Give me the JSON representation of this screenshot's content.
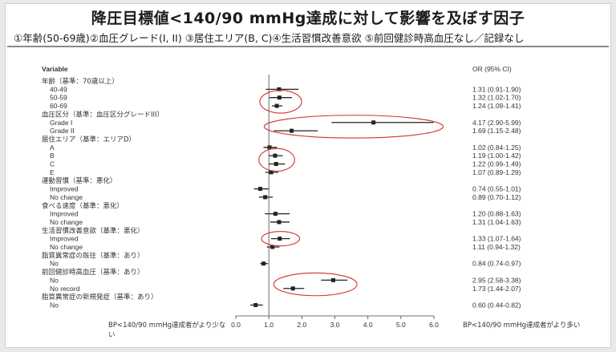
{
  "title": "降圧目標値<140/90 mmHg達成に対して影響を及ぼす因子",
  "subtitle": "①年齢(50-69歳)②血圧グレード(I, II) ③居住エリア(B, C)④生活習慣改善意欲 ⑤前回健診時高血圧なし／記録なし",
  "chart_data": {
    "type": "forest",
    "column_left": "Variable",
    "column_right": "OR (95% CI)",
    "xlim": [
      0,
      6
    ],
    "xticks": [
      "0.0",
      "1.0",
      "2.0",
      "3.0",
      "4.0",
      "5.0",
      "6.0"
    ],
    "reference_line": 1.0,
    "footer_left": "BP<140/90 mmHg達成者がより少ない",
    "footer_right": "BP<140/90 mmHg達成者がより多い",
    "rows": [
      {
        "label": "年齢（基準：70歳以上）",
        "header": true
      },
      {
        "label": "40-49",
        "or": 1.31,
        "lo": 0.91,
        "hi": 1.9,
        "ci_text": "1.31 (0.91-1.90)"
      },
      {
        "label": "50-59",
        "or": 1.32,
        "lo": 1.02,
        "hi": 1.7,
        "ci_text": "1.32 (1.02-1.70)",
        "highlight": true
      },
      {
        "label": "60-69",
        "or": 1.24,
        "lo": 1.09,
        "hi": 1.41,
        "ci_text": "1.24 (1.09-1.41)",
        "highlight": true
      },
      {
        "label": "血圧区分（基準：血圧区分グレードIII）",
        "header": true
      },
      {
        "label": "Grade I",
        "or": 4.17,
        "lo": 2.9,
        "hi": 5.99,
        "ci_text": "4.17 (2.90-5.99)",
        "highlight": true
      },
      {
        "label": "Grade II",
        "or": 1.69,
        "lo": 1.15,
        "hi": 2.48,
        "ci_text": "1.69 (1.15-2.48)",
        "highlight": true
      },
      {
        "label": "居住エリア（基準：エリアD）",
        "header": true
      },
      {
        "label": "A",
        "or": 1.02,
        "lo": 0.84,
        "hi": 1.25,
        "ci_text": "1.02 (0.84-1.25)"
      },
      {
        "label": "B",
        "or": 1.19,
        "lo": 1.0,
        "hi": 1.42,
        "ci_text": "1.19 (1.00-1.42)",
        "highlight": true
      },
      {
        "label": "C",
        "or": 1.22,
        "lo": 0.99,
        "hi": 1.49,
        "ci_text": "1.22 (0.99-1.49)",
        "highlight": true
      },
      {
        "label": "E",
        "or": 1.07,
        "lo": 0.89,
        "hi": 1.29,
        "ci_text": "1.07 (0.89-1.29)"
      },
      {
        "label": "運動習慣（基準：悪化）",
        "header": true
      },
      {
        "label": "Improved",
        "or": 0.74,
        "lo": 0.55,
        "hi": 1.01,
        "ci_text": "0.74 (0.55-1.01)"
      },
      {
        "label": "No change",
        "or": 0.89,
        "lo": 0.7,
        "hi": 1.12,
        "ci_text": "0.89 (0.70-1.12)"
      },
      {
        "label": "食べる速度（基準：悪化）",
        "header": true
      },
      {
        "label": "Improved",
        "or": 1.2,
        "lo": 0.88,
        "hi": 1.63,
        "ci_text": "1.20 (0.88-1.63)"
      },
      {
        "label": "No change",
        "or": 1.31,
        "lo": 1.04,
        "hi": 1.63,
        "ci_text": "1.31 (1.04-1.63)"
      },
      {
        "label": "生活習慣改善意欲（基準：悪化）",
        "header": true
      },
      {
        "label": "Improved",
        "or": 1.33,
        "lo": 1.07,
        "hi": 1.64,
        "ci_text": "1.33 (1.07-1.64)",
        "highlight": true
      },
      {
        "label": "No change",
        "or": 1.11,
        "lo": 0.94,
        "hi": 1.32,
        "ci_text": "1.11 (0.94-1.32)"
      },
      {
        "label": "脂質異常症の既往（基準：あり）",
        "header": true
      },
      {
        "label": "No",
        "or": 0.84,
        "lo": 0.74,
        "hi": 0.97,
        "ci_text": "0.84 (0.74-0.97)"
      },
      {
        "label": "前回健診時高血圧（基準：あり）",
        "header": true
      },
      {
        "label": "No",
        "or": 2.95,
        "lo": 2.58,
        "hi": 3.38,
        "ci_text": "2.95 (2.58-3.38)",
        "highlight": true
      },
      {
        "label": "No record",
        "or": 1.73,
        "lo": 1.44,
        "hi": 2.07,
        "ci_text": "1.73 (1.44-2.07)",
        "highlight": true
      },
      {
        "label": "脂質異常症の新規発症（基準：あり）",
        "header": true
      },
      {
        "label": "No",
        "or": 0.6,
        "lo": 0.44,
        "hi": 0.82,
        "ci_text": "0.60 (0.44-0.82)"
      }
    ],
    "colors": {
      "marker": "#222222",
      "highlight_ellipse": "#d62e2e",
      "axis": "#444444"
    }
  }
}
